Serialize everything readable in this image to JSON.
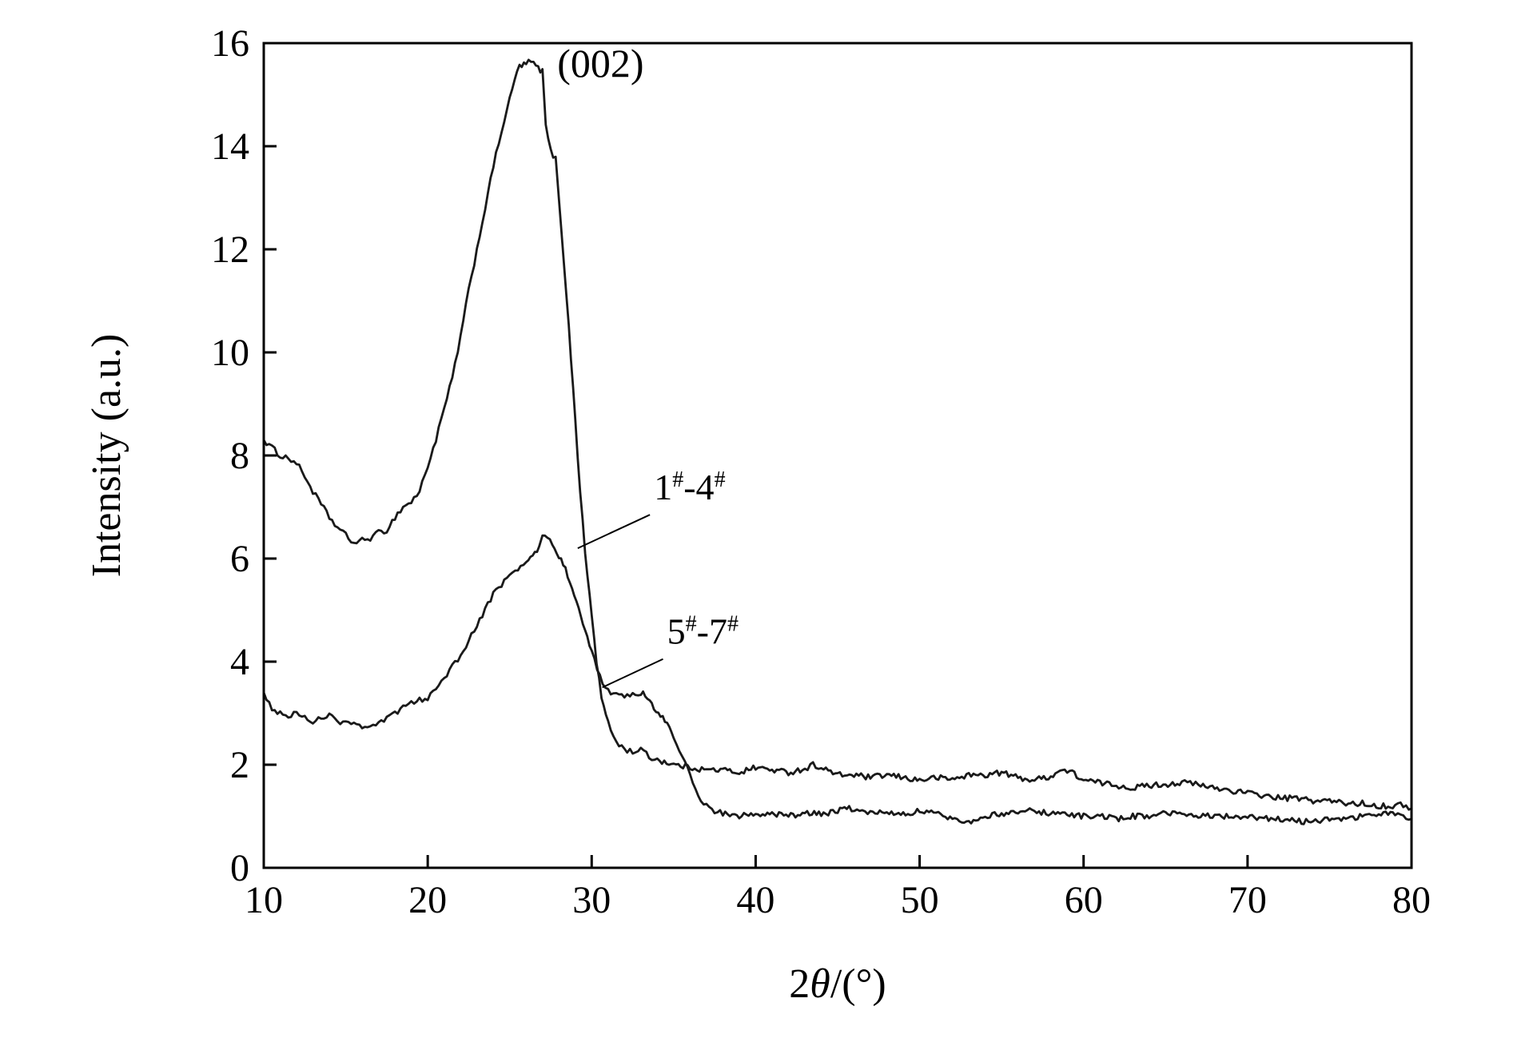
{
  "figure": {
    "background": "#ffffff",
    "axis_color": "#000000",
    "line_color": "#1a1a1a"
  },
  "chart_data": {
    "type": "line",
    "title": "",
    "xlabel": "2θ/(°)",
    "ylabel": "Intensity (a.u.)",
    "xlim": [
      10,
      80
    ],
    "ylim": [
      0,
      16
    ],
    "xticks": [
      10,
      20,
      30,
      40,
      50,
      60,
      70,
      80
    ],
    "yticks": [
      0,
      2,
      4,
      6,
      8,
      10,
      12,
      14,
      16
    ],
    "grid": false,
    "legend_position": "inline-labels-with-leader-lines",
    "annotations": [
      {
        "text": "(002)",
        "x": 27.9,
        "y": 15.35
      }
    ],
    "series": [
      {
        "name": "1#-4#",
        "label": {
          "x": 33.8,
          "y": 7.15
        },
        "leader": {
          "x1": 33.55,
          "y1": 6.85,
          "x2": 29.15,
          "y2": 6.2
        },
        "points": [
          [
            10,
            8.3
          ],
          [
            10.5,
            8.15
          ],
          [
            11,
            8.0
          ],
          [
            11.5,
            7.95
          ],
          [
            12,
            7.85
          ],
          [
            12.5,
            7.6
          ],
          [
            13,
            7.3
          ],
          [
            13.5,
            7.05
          ],
          [
            14,
            6.8
          ],
          [
            14.5,
            6.6
          ],
          [
            15,
            6.45
          ],
          [
            15.5,
            6.3
          ],
          [
            16,
            6.35
          ],
          [
            16.5,
            6.4
          ],
          [
            17,
            6.5
          ],
          [
            17.5,
            6.55
          ],
          [
            18,
            6.8
          ],
          [
            18.5,
            7.0
          ],
          [
            19,
            7.1
          ],
          [
            19.5,
            7.3
          ],
          [
            20,
            7.8
          ],
          [
            20.5,
            8.3
          ],
          [
            21,
            8.9
          ],
          [
            21.5,
            9.5
          ],
          [
            22,
            10.3
          ],
          [
            22.5,
            11.2
          ],
          [
            23,
            12.0
          ],
          [
            23.5,
            12.8
          ],
          [
            24,
            13.6
          ],
          [
            24.5,
            14.3
          ],
          [
            25,
            14.9
          ],
          [
            25.3,
            15.3
          ],
          [
            25.6,
            15.55
          ],
          [
            26,
            15.6
          ],
          [
            26.3,
            15.65
          ],
          [
            26.6,
            15.55
          ],
          [
            27,
            15.45
          ],
          [
            27.2,
            14.4
          ],
          [
            27.5,
            13.9
          ],
          [
            27.8,
            13.75
          ],
          [
            28,
            13.0
          ],
          [
            28.3,
            11.8
          ],
          [
            28.6,
            10.5
          ],
          [
            29,
            8.7
          ],
          [
            29.3,
            7.3
          ],
          [
            29.6,
            6.1
          ],
          [
            30,
            4.9
          ],
          [
            30.3,
            4.0
          ],
          [
            30.6,
            3.3
          ],
          [
            31,
            2.8
          ],
          [
            31.5,
            2.45
          ],
          [
            32,
            2.3
          ],
          [
            32.5,
            2.25
          ],
          [
            33,
            2.3
          ],
          [
            33.5,
            2.15
          ],
          [
            34,
            2.1
          ],
          [
            35,
            2.0
          ],
          [
            36,
            1.95
          ],
          [
            37,
            1.9
          ],
          [
            38,
            1.9
          ],
          [
            39,
            1.85
          ],
          [
            40,
            1.95
          ],
          [
            41,
            1.9
          ],
          [
            42,
            1.85
          ],
          [
            43,
            1.92
          ],
          [
            43.5,
            2.0
          ],
          [
            44,
            1.95
          ],
          [
            45,
            1.8
          ],
          [
            46,
            1.8
          ],
          [
            47,
            1.75
          ],
          [
            48,
            1.8
          ],
          [
            49,
            1.75
          ],
          [
            50,
            1.7
          ],
          [
            51,
            1.75
          ],
          [
            52,
            1.72
          ],
          [
            53,
            1.8
          ],
          [
            54,
            1.8
          ],
          [
            55,
            1.85
          ],
          [
            56,
            1.75
          ],
          [
            57,
            1.7
          ],
          [
            58,
            1.78
          ],
          [
            58.7,
            1.9
          ],
          [
            59.3,
            1.85
          ],
          [
            60,
            1.7
          ],
          [
            61,
            1.65
          ],
          [
            62,
            1.6
          ],
          [
            63,
            1.55
          ],
          [
            64,
            1.6
          ],
          [
            65,
            1.62
          ],
          [
            66,
            1.65
          ],
          [
            66.5,
            1.65
          ],
          [
            67,
            1.6
          ],
          [
            68,
            1.55
          ],
          [
            69,
            1.5
          ],
          [
            70,
            1.45
          ],
          [
            71,
            1.4
          ],
          [
            72,
            1.35
          ],
          [
            73,
            1.35
          ],
          [
            74,
            1.3
          ],
          [
            75,
            1.3
          ],
          [
            76,
            1.25
          ],
          [
            77,
            1.25
          ],
          [
            78,
            1.2
          ],
          [
            79,
            1.2
          ],
          [
            79.5,
            1.22
          ],
          [
            80,
            1.15
          ]
        ]
      },
      {
        "name": "5#-7#",
        "label": {
          "x": 34.6,
          "y": 4.35
        },
        "leader": {
          "x1": 34.35,
          "y1": 4.05,
          "x2": 30.65,
          "y2": 3.5
        },
        "points": [
          [
            10,
            3.4
          ],
          [
            10.5,
            3.1
          ],
          [
            11,
            3.0
          ],
          [
            11.5,
            2.95
          ],
          [
            12,
            3.0
          ],
          [
            12.5,
            2.9
          ],
          [
            13,
            2.85
          ],
          [
            13.5,
            2.92
          ],
          [
            14,
            2.95
          ],
          [
            14.5,
            2.85
          ],
          [
            15,
            2.8
          ],
          [
            15.5,
            2.85
          ],
          [
            16,
            2.75
          ],
          [
            16.5,
            2.7
          ],
          [
            17,
            2.78
          ],
          [
            17.5,
            2.9
          ],
          [
            18,
            3.0
          ],
          [
            18.5,
            3.1
          ],
          [
            19,
            3.2
          ],
          [
            19.5,
            3.25
          ],
          [
            20,
            3.3
          ],
          [
            20.5,
            3.5
          ],
          [
            21,
            3.7
          ],
          [
            21.5,
            3.9
          ],
          [
            22,
            4.1
          ],
          [
            22.5,
            4.4
          ],
          [
            23,
            4.7
          ],
          [
            23.5,
            5.0
          ],
          [
            24,
            5.3
          ],
          [
            24.5,
            5.5
          ],
          [
            25,
            5.7
          ],
          [
            25.5,
            5.8
          ],
          [
            26,
            5.9
          ],
          [
            26.4,
            6.05
          ],
          [
            26.8,
            6.25
          ],
          [
            27,
            6.4
          ],
          [
            27.3,
            6.45
          ],
          [
            27.6,
            6.3
          ],
          [
            28,
            6.05
          ],
          [
            28.4,
            5.8
          ],
          [
            28.8,
            5.45
          ],
          [
            29.2,
            5.0
          ],
          [
            29.6,
            4.6
          ],
          [
            30,
            4.2
          ],
          [
            30.5,
            3.7
          ],
          [
            31,
            3.45
          ],
          [
            31.5,
            3.35
          ],
          [
            32,
            3.3
          ],
          [
            32.5,
            3.35
          ],
          [
            33,
            3.4
          ],
          [
            33.4,
            3.3
          ],
          [
            33.8,
            3.1
          ],
          [
            34.2,
            2.95
          ],
          [
            34.6,
            2.8
          ],
          [
            35,
            2.5
          ],
          [
            35.5,
            2.2
          ],
          [
            36,
            1.8
          ],
          [
            36.5,
            1.4
          ],
          [
            37,
            1.2
          ],
          [
            37.5,
            1.1
          ],
          [
            38,
            1.05
          ],
          [
            39,
            1.0
          ],
          [
            40,
            1.05
          ],
          [
            41,
            1.05
          ],
          [
            42,
            1.0
          ],
          [
            43,
            1.05
          ],
          [
            44,
            1.05
          ],
          [
            45,
            1.1
          ],
          [
            45.7,
            1.15
          ],
          [
            46.5,
            1.1
          ],
          [
            47,
            1.05
          ],
          [
            48,
            1.1
          ],
          [
            49,
            1.05
          ],
          [
            50,
            1.1
          ],
          [
            51,
            1.05
          ],
          [
            52,
            0.95
          ],
          [
            53,
            0.9
          ],
          [
            54,
            1.0
          ],
          [
            55,
            1.05
          ],
          [
            56,
            1.1
          ],
          [
            57,
            1.1
          ],
          [
            58,
            1.05
          ],
          [
            59,
            1.05
          ],
          [
            60,
            1.0
          ],
          [
            61,
            1.0
          ],
          [
            62,
            0.95
          ],
          [
            63,
            1.0
          ],
          [
            64,
            1.0
          ],
          [
            65,
            1.05
          ],
          [
            66,
            1.05
          ],
          [
            67,
            1.0
          ],
          [
            68,
            1.0
          ],
          [
            69,
            1.0
          ],
          [
            70,
            1.0
          ],
          [
            71,
            0.95
          ],
          [
            72,
            0.95
          ],
          [
            73,
            0.9
          ],
          [
            74,
            0.9
          ],
          [
            75,
            0.95
          ],
          [
            76,
            0.95
          ],
          [
            77,
            1.0
          ],
          [
            78,
            1.05
          ],
          [
            79,
            1.05
          ],
          [
            79.5,
            1.0
          ],
          [
            80,
            0.95
          ]
        ]
      }
    ]
  }
}
